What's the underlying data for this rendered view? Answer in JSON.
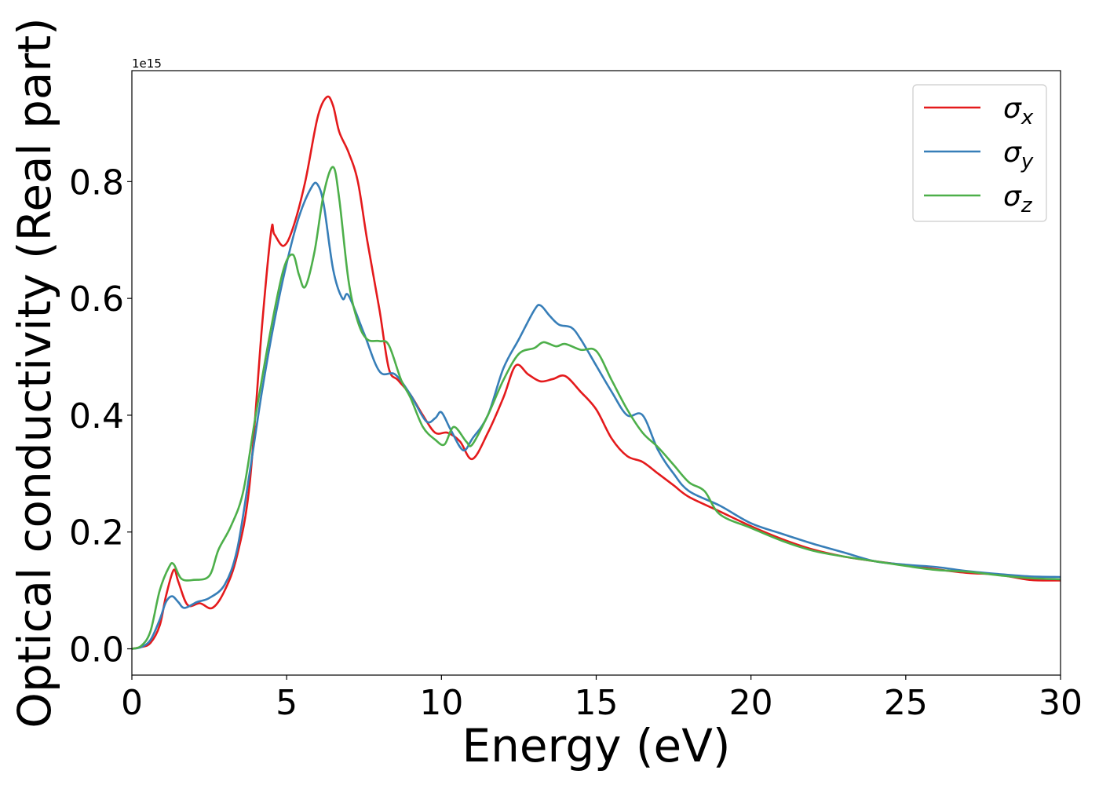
{
  "chart_data": {
    "type": "line",
    "title": "",
    "xlabel": "Energy (eV)",
    "ylabel": "Optical conductivity (Real part)",
    "offset_text": "1e15",
    "xlim": [
      0,
      30
    ],
    "ylim": [
      -0.045,
      0.99
    ],
    "xticks": [
      0,
      5,
      10,
      15,
      20,
      25,
      30
    ],
    "xtick_labels": [
      "0",
      "5",
      "10",
      "15",
      "20",
      "25",
      "30"
    ],
    "yticks": [
      0.0,
      0.2,
      0.4,
      0.6,
      0.8
    ],
    "ytick_labels": [
      "0.0",
      "0.2",
      "0.4",
      "0.6",
      "0.8"
    ],
    "grid": false,
    "legend_position": "top-right",
    "series": [
      {
        "name": "σx",
        "symbol": "σ",
        "subscript": "x",
        "color": "#e41a1c",
        "points": [
          [
            0,
            0.0
          ],
          [
            0.3,
            0.003
          ],
          [
            0.6,
            0.01
          ],
          [
            0.9,
            0.04
          ],
          [
            1.1,
            0.09
          ],
          [
            1.35,
            0.135
          ],
          [
            1.5,
            0.115
          ],
          [
            1.8,
            0.075
          ],
          [
            2.2,
            0.078
          ],
          [
            2.6,
            0.07
          ],
          [
            3.0,
            0.1
          ],
          [
            3.4,
            0.16
          ],
          [
            3.8,
            0.28
          ],
          [
            4.2,
            0.55
          ],
          [
            4.5,
            0.715
          ],
          [
            4.6,
            0.71
          ],
          [
            4.9,
            0.69
          ],
          [
            5.2,
            0.72
          ],
          [
            5.6,
            0.8
          ],
          [
            6.0,
            0.91
          ],
          [
            6.3,
            0.945
          ],
          [
            6.5,
            0.93
          ],
          [
            6.7,
            0.885
          ],
          [
            7.0,
            0.85
          ],
          [
            7.3,
            0.8
          ],
          [
            7.6,
            0.7
          ],
          [
            8.0,
            0.58
          ],
          [
            8.3,
            0.48
          ],
          [
            8.6,
            0.46
          ],
          [
            9.0,
            0.435
          ],
          [
            9.4,
            0.4
          ],
          [
            9.8,
            0.37
          ],
          [
            10.2,
            0.37
          ],
          [
            10.6,
            0.355
          ],
          [
            11.0,
            0.325
          ],
          [
            11.5,
            0.37
          ],
          [
            12.0,
            0.43
          ],
          [
            12.4,
            0.485
          ],
          [
            12.8,
            0.47
          ],
          [
            13.2,
            0.458
          ],
          [
            13.6,
            0.462
          ],
          [
            14.0,
            0.467
          ],
          [
            14.5,
            0.44
          ],
          [
            15.0,
            0.41
          ],
          [
            15.5,
            0.36
          ],
          [
            16.0,
            0.33
          ],
          [
            16.5,
            0.32
          ],
          [
            17.0,
            0.3
          ],
          [
            17.5,
            0.28
          ],
          [
            18.0,
            0.26
          ],
          [
            19.0,
            0.235
          ],
          [
            20.0,
            0.21
          ],
          [
            21.0,
            0.188
          ],
          [
            22.0,
            0.17
          ],
          [
            23.0,
            0.158
          ],
          [
            24.0,
            0.15
          ],
          [
            25.0,
            0.143
          ],
          [
            26.0,
            0.136
          ],
          [
            27.0,
            0.13
          ],
          [
            28.0,
            0.127
          ],
          [
            29.0,
            0.118
          ],
          [
            30.0,
            0.117
          ]
        ]
      },
      {
        "name": "σy",
        "symbol": "σ",
        "subscript": "y",
        "color": "#377eb8",
        "points": [
          [
            0,
            0.0
          ],
          [
            0.3,
            0.003
          ],
          [
            0.6,
            0.015
          ],
          [
            0.9,
            0.05
          ],
          [
            1.1,
            0.08
          ],
          [
            1.3,
            0.09
          ],
          [
            1.5,
            0.08
          ],
          [
            1.7,
            0.07
          ],
          [
            2.1,
            0.08
          ],
          [
            2.5,
            0.087
          ],
          [
            3.0,
            0.11
          ],
          [
            3.4,
            0.17
          ],
          [
            3.8,
            0.3
          ],
          [
            4.2,
            0.44
          ],
          [
            4.6,
            0.56
          ],
          [
            5.0,
            0.66
          ],
          [
            5.4,
            0.74
          ],
          [
            5.8,
            0.79
          ],
          [
            6.0,
            0.795
          ],
          [
            6.2,
            0.76
          ],
          [
            6.5,
            0.65
          ],
          [
            6.8,
            0.6
          ],
          [
            7.0,
            0.605
          ],
          [
            7.5,
            0.54
          ],
          [
            8.0,
            0.475
          ],
          [
            8.5,
            0.47
          ],
          [
            9.0,
            0.435
          ],
          [
            9.5,
            0.39
          ],
          [
            9.8,
            0.395
          ],
          [
            10.0,
            0.405
          ],
          [
            10.3,
            0.375
          ],
          [
            10.7,
            0.34
          ],
          [
            11.0,
            0.36
          ],
          [
            11.5,
            0.4
          ],
          [
            12.0,
            0.48
          ],
          [
            12.5,
            0.53
          ],
          [
            13.0,
            0.58
          ],
          [
            13.2,
            0.588
          ],
          [
            13.5,
            0.57
          ],
          [
            13.8,
            0.555
          ],
          [
            14.2,
            0.55
          ],
          [
            14.5,
            0.53
          ],
          [
            15.0,
            0.485
          ],
          [
            15.5,
            0.44
          ],
          [
            16.0,
            0.4
          ],
          [
            16.5,
            0.4
          ],
          [
            17.0,
            0.34
          ],
          [
            17.5,
            0.3
          ],
          [
            18.0,
            0.27
          ],
          [
            19.0,
            0.245
          ],
          [
            20.0,
            0.215
          ],
          [
            21.0,
            0.197
          ],
          [
            22.0,
            0.18
          ],
          [
            23.0,
            0.165
          ],
          [
            24.0,
            0.15
          ],
          [
            25.0,
            0.144
          ],
          [
            26.0,
            0.14
          ],
          [
            27.0,
            0.133
          ],
          [
            28.0,
            0.128
          ],
          [
            29.0,
            0.124
          ],
          [
            30.0,
            0.123
          ]
        ]
      },
      {
        "name": "σz",
        "symbol": "σ",
        "subscript": "z",
        "color": "#4daf4a",
        "points": [
          [
            0,
            0.0
          ],
          [
            0.3,
            0.005
          ],
          [
            0.6,
            0.03
          ],
          [
            0.9,
            0.1
          ],
          [
            1.2,
            0.14
          ],
          [
            1.35,
            0.145
          ],
          [
            1.6,
            0.12
          ],
          [
            2.0,
            0.118
          ],
          [
            2.5,
            0.125
          ],
          [
            2.8,
            0.17
          ],
          [
            3.2,
            0.21
          ],
          [
            3.6,
            0.27
          ],
          [
            4.0,
            0.4
          ],
          [
            4.5,
            0.55
          ],
          [
            4.9,
            0.65
          ],
          [
            5.2,
            0.675
          ],
          [
            5.4,
            0.64
          ],
          [
            5.6,
            0.62
          ],
          [
            5.9,
            0.68
          ],
          [
            6.2,
            0.78
          ],
          [
            6.5,
            0.825
          ],
          [
            6.7,
            0.77
          ],
          [
            7.0,
            0.63
          ],
          [
            7.3,
            0.56
          ],
          [
            7.6,
            0.53
          ],
          [
            8.0,
            0.527
          ],
          [
            8.3,
            0.52
          ],
          [
            8.7,
            0.46
          ],
          [
            9.0,
            0.43
          ],
          [
            9.4,
            0.38
          ],
          [
            9.8,
            0.358
          ],
          [
            10.1,
            0.35
          ],
          [
            10.4,
            0.38
          ],
          [
            10.8,
            0.355
          ],
          [
            11.0,
            0.35
          ],
          [
            11.5,
            0.4
          ],
          [
            12.0,
            0.46
          ],
          [
            12.5,
            0.505
          ],
          [
            13.0,
            0.515
          ],
          [
            13.3,
            0.525
          ],
          [
            13.7,
            0.518
          ],
          [
            14.0,
            0.522
          ],
          [
            14.5,
            0.512
          ],
          [
            15.0,
            0.51
          ],
          [
            15.5,
            0.46
          ],
          [
            16.0,
            0.41
          ],
          [
            16.5,
            0.37
          ],
          [
            17.0,
            0.345
          ],
          [
            17.5,
            0.315
          ],
          [
            18.0,
            0.285
          ],
          [
            18.5,
            0.27
          ],
          [
            19.0,
            0.23
          ],
          [
            20.0,
            0.207
          ],
          [
            21.0,
            0.185
          ],
          [
            22.0,
            0.168
          ],
          [
            23.0,
            0.158
          ],
          [
            24.0,
            0.15
          ],
          [
            25.0,
            0.142
          ],
          [
            26.0,
            0.135
          ],
          [
            27.0,
            0.132
          ],
          [
            28.0,
            0.126
          ],
          [
            29.0,
            0.121
          ],
          [
            30.0,
            0.119
          ]
        ]
      }
    ]
  }
}
